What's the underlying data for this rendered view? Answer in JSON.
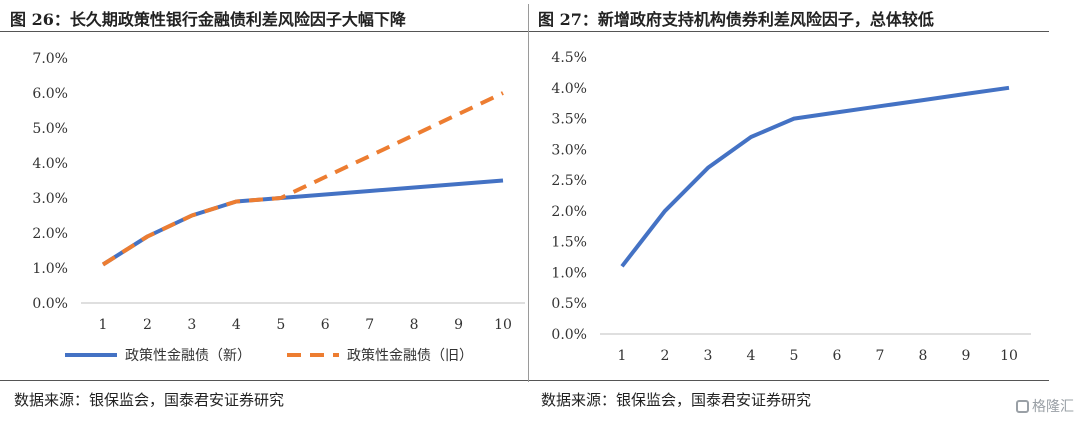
{
  "left": {
    "title": "图 26：长久期政策性银行金融债利差风险因子大幅下降",
    "source": "数据来源：银保监会，国泰君安证券研究"
  },
  "right": {
    "title": "图 27：新增政府支持机构债券利差风险因子，总体较低",
    "source": "数据来源：银保监会，国泰君安证券研究"
  },
  "watermark": "格隆汇",
  "chart_data": [
    {
      "type": "line",
      "title": "图 26：长久期政策性银行金融债利差风险因子大幅下降",
      "x": [
        1,
        2,
        3,
        4,
        5,
        6,
        7,
        8,
        9,
        10
      ],
      "ylim": [
        0,
        7
      ],
      "yticks": [
        "0.0%",
        "1.0%",
        "2.0%",
        "3.0%",
        "4.0%",
        "5.0%",
        "6.0%",
        "7.0%"
      ],
      "grid": false,
      "legend": "bottom",
      "series": [
        {
          "name": "政策性金融债（新）",
          "color": "#4472c4",
          "dash": false,
          "values": [
            1.1,
            1.9,
            2.5,
            2.9,
            3.0,
            3.1,
            3.2,
            3.3,
            3.4,
            3.5
          ]
        },
        {
          "name": "政策性金融债（旧）",
          "color": "#ed7d31",
          "dash": true,
          "values": [
            1.1,
            1.9,
            2.5,
            2.9,
            3.0,
            3.6,
            4.2,
            4.8,
            5.4,
            6.0
          ]
        }
      ]
    },
    {
      "type": "line",
      "title": "图 27：新增政府支持机构债券利差风险因子，总体较低",
      "x": [
        1,
        2,
        3,
        4,
        5,
        6,
        7,
        8,
        9,
        10
      ],
      "ylim": [
        0,
        4.5
      ],
      "yticks": [
        "0.0%",
        "0.5%",
        "1.0%",
        "1.5%",
        "2.0%",
        "2.5%",
        "3.0%",
        "3.5%",
        "4.0%",
        "4.5%"
      ],
      "grid": false,
      "series": [
        {
          "color": "#4472c4",
          "dash": false,
          "values": [
            1.1,
            2.0,
            2.7,
            3.2,
            3.5,
            3.6,
            3.7,
            3.8,
            3.9,
            4.0
          ]
        }
      ]
    }
  ]
}
